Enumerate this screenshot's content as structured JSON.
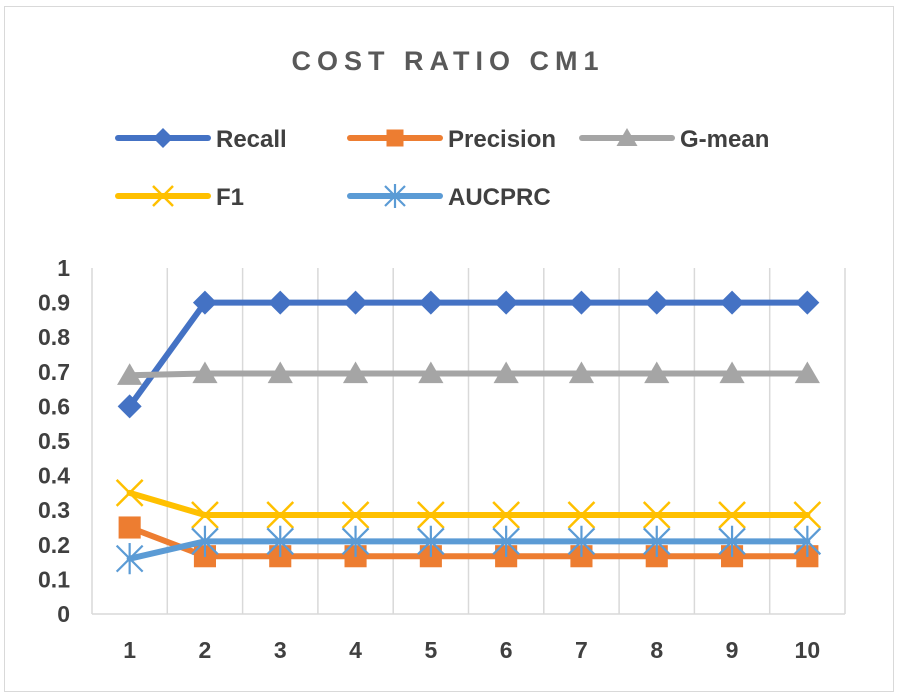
{
  "chart_data": {
    "type": "line",
    "title": "COST RATIO CM1",
    "xlabel": "",
    "ylabel": "",
    "categories": [
      "1",
      "2",
      "3",
      "4",
      "5",
      "6",
      "7",
      "8",
      "9",
      "10"
    ],
    "ylim": [
      0,
      1
    ],
    "yticks": [
      "0",
      "0.1",
      "0.2",
      "0.3",
      "0.4",
      "0.5",
      "0.6",
      "0.7",
      "0.8",
      "0.9",
      "1"
    ],
    "grid": "vertical",
    "legend_position": "top",
    "series": [
      {
        "name": "Recall",
        "color": "#4472c4",
        "marker": "diamond",
        "values": [
          0.6,
          0.9,
          0.9,
          0.9,
          0.9,
          0.9,
          0.9,
          0.9,
          0.9,
          0.9
        ]
      },
      {
        "name": "Precision",
        "color": "#ed7d31",
        "marker": "square",
        "values": [
          0.25,
          0.167,
          0.167,
          0.167,
          0.167,
          0.167,
          0.167,
          0.167,
          0.167,
          0.167
        ]
      },
      {
        "name": "G-mean",
        "color": "#a5a5a5",
        "marker": "triangle",
        "values": [
          0.69,
          0.695,
          0.695,
          0.695,
          0.695,
          0.695,
          0.695,
          0.695,
          0.695,
          0.695
        ]
      },
      {
        "name": "F1",
        "color": "#ffc000",
        "marker": "x",
        "values": [
          0.35,
          0.286,
          0.286,
          0.286,
          0.286,
          0.286,
          0.286,
          0.286,
          0.286,
          0.286
        ]
      },
      {
        "name": "AUCPRC",
        "color": "#5b9bd5",
        "marker": "star",
        "values": [
          0.16,
          0.21,
          0.21,
          0.21,
          0.21,
          0.21,
          0.21,
          0.21,
          0.21,
          0.21
        ]
      }
    ]
  }
}
